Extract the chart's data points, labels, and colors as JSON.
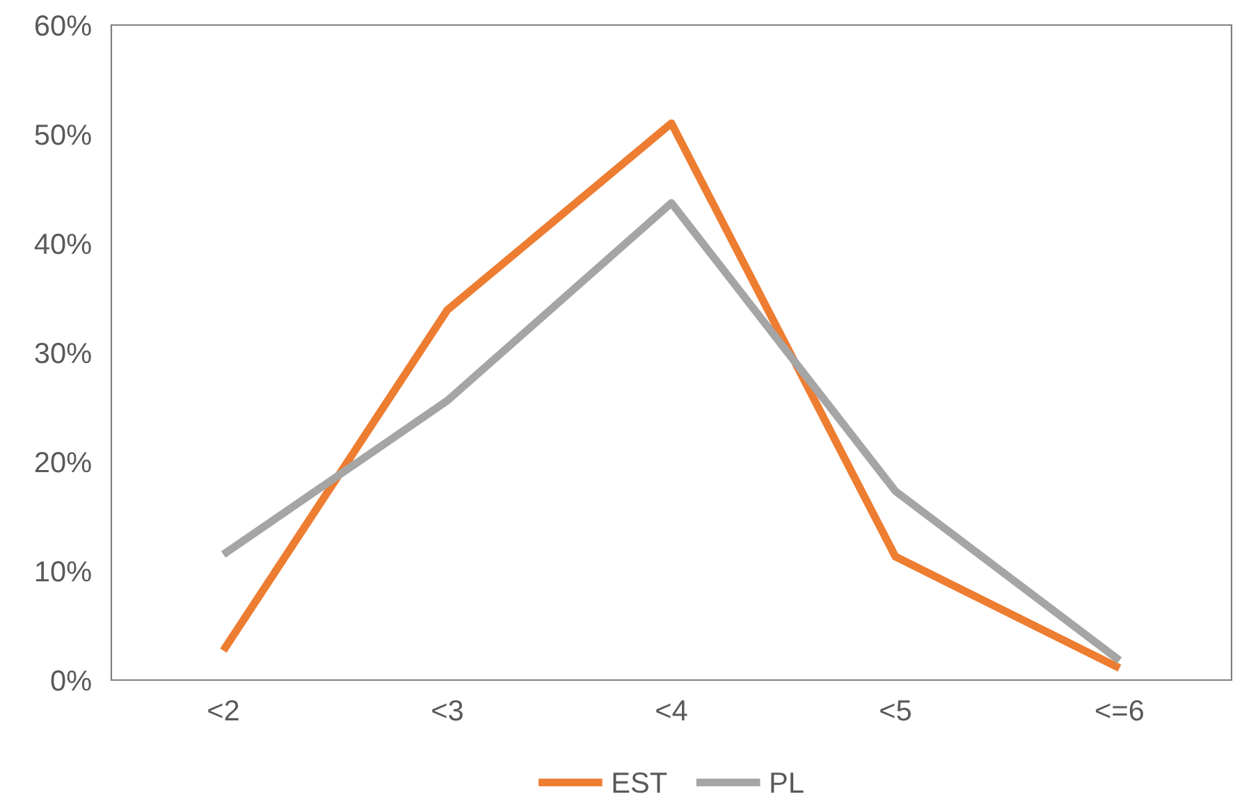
{
  "chart_data": {
    "type": "line",
    "categories": [
      "<2",
      "<3",
      "<4",
      "<5",
      "<=6"
    ],
    "series": [
      {
        "name": "EST",
        "color": "#ed7d31",
        "values": [
          2.7,
          33.9,
          51.0,
          11.3,
          1.1
        ]
      },
      {
        "name": "PL",
        "color": "#a5a5a5",
        "values": [
          11.5,
          25.6,
          43.7,
          17.3,
          1.8
        ]
      }
    ],
    "ylim": [
      0,
      60
    ],
    "yticks": [
      {
        "value": 0,
        "label": "0%"
      },
      {
        "value": 10,
        "label": "10%"
      },
      {
        "value": 20,
        "label": "20%"
      },
      {
        "value": 30,
        "label": "30%"
      },
      {
        "value": 40,
        "label": "40%"
      },
      {
        "value": 50,
        "label": "50%"
      },
      {
        "value": 60,
        "label": "60%"
      }
    ],
    "grid": false,
    "legend": "bottom",
    "marker": "none",
    "line_style": "solid"
  }
}
